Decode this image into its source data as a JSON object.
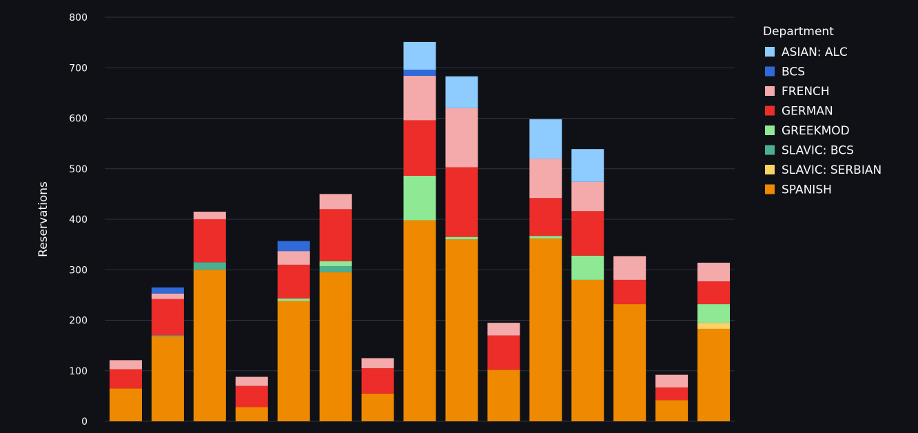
{
  "chart_data": {
    "type": "bar",
    "stacked": true,
    "title": "",
    "xlabel": "",
    "ylabel": "Reservations",
    "ylim": [
      0,
      800
    ],
    "y_ticks": [
      0,
      100,
      200,
      300,
      400,
      500,
      600,
      700,
      800
    ],
    "grid": true,
    "legend": {
      "title": "Department",
      "position": "right"
    },
    "background": "#0f1116",
    "series": [
      {
        "name": "SPANISH",
        "color": "#ef8a00",
        "values": [
          65,
          168,
          300,
          28,
          238,
          295,
          55,
          398,
          360,
          102,
          362,
          280,
          232,
          42,
          183
        ]
      },
      {
        "name": "SLAVIC: SERBIAN",
        "color": "#f9d364",
        "values": [
          0,
          0,
          0,
          0,
          0,
          0,
          0,
          0,
          0,
          0,
          0,
          0,
          0,
          0,
          12
        ]
      },
      {
        "name": "SLAVIC: BCS",
        "color": "#4caf91",
        "values": [
          0,
          2,
          15,
          0,
          0,
          12,
          0,
          0,
          0,
          0,
          0,
          0,
          0,
          0,
          0
        ]
      },
      {
        "name": "GREEKMOD",
        "color": "#8ee894",
        "values": [
          0,
          0,
          0,
          0,
          5,
          10,
          0,
          88,
          5,
          0,
          5,
          48,
          0,
          0,
          37
        ]
      },
      {
        "name": "GERMAN",
        "color": "#ec2d2a",
        "values": [
          38,
          72,
          85,
          42,
          67,
          103,
          50,
          110,
          138,
          68,
          75,
          88,
          48,
          25,
          45
        ]
      },
      {
        "name": "FRENCH",
        "color": "#f4aaaa",
        "values": [
          18,
          11,
          15,
          18,
          27,
          30,
          20,
          88,
          117,
          25,
          78,
          58,
          47,
          25,
          37
        ]
      },
      {
        "name": "BCS",
        "color": "#2f6ad8",
        "values": [
          0,
          12,
          0,
          0,
          20,
          0,
          0,
          12,
          0,
          0,
          0,
          0,
          0,
          0,
          0
        ]
      },
      {
        "name": "ASIAN: ALC",
        "color": "#8ecbff",
        "values": [
          0,
          0,
          0,
          0,
          0,
          0,
          0,
          55,
          63,
          0,
          78,
          65,
          0,
          0,
          0
        ]
      }
    ]
  }
}
